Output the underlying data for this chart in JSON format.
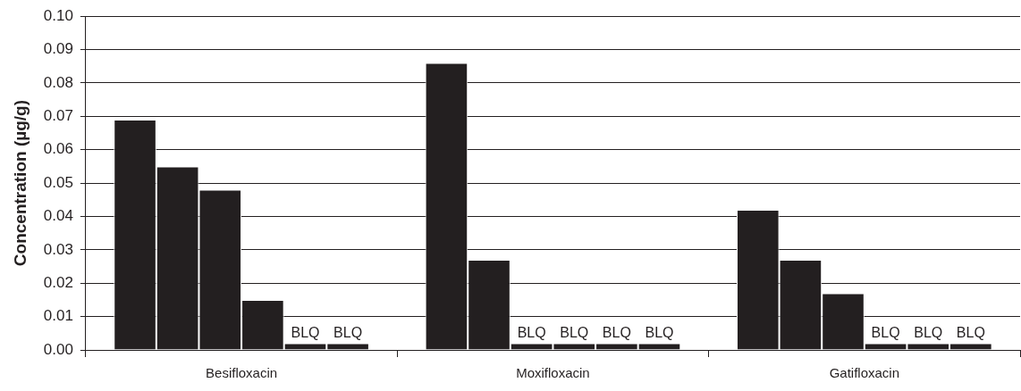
{
  "chart_data": {
    "type": "bar",
    "ylabel": "Concentration (µg/g)",
    "categories": [
      "Besifloxacin",
      "Moxifloxacin",
      "Gatifloxacin"
    ],
    "series": [
      {
        "color": "#231f20",
        "values": [
          0.069,
          0.086,
          0.042
        ],
        "value_labels": [
          null,
          null,
          null
        ]
      },
      {
        "color": "#231f20",
        "values": [
          0.055,
          0.027,
          0.027
        ],
        "value_labels": [
          null,
          null,
          null
        ]
      },
      {
        "color": "#231f20",
        "values": [
          0.048,
          0.002,
          0.017
        ],
        "value_labels": [
          null,
          "BLQ",
          null
        ]
      },
      {
        "color": "#231f20",
        "values": [
          0.015,
          0.002,
          0.002
        ],
        "value_labels": [
          null,
          "BLQ",
          "BLQ"
        ]
      },
      {
        "color": "#231f20",
        "values": [
          0.002,
          0.002,
          0.002
        ],
        "value_labels": [
          "BLQ",
          "BLQ",
          "BLQ"
        ]
      },
      {
        "color": "#231f20",
        "values": [
          0.002,
          0.002,
          0.002
        ],
        "value_labels": [
          "BLQ",
          "BLQ",
          "BLQ"
        ]
      }
    ],
    "ylim": [
      0,
      0.1
    ],
    "yticks": [
      {
        "value": 0,
        "label": "0.00"
      },
      {
        "value": 0.01,
        "label": "0.01"
      },
      {
        "value": 0.02,
        "label": "0.02"
      },
      {
        "value": 0.03,
        "label": "0.03"
      },
      {
        "value": 0.04,
        "label": "0.04"
      },
      {
        "value": 0.05,
        "label": "0.05"
      },
      {
        "value": 0.06,
        "label": "0.06"
      },
      {
        "value": 0.07,
        "label": "0.07"
      },
      {
        "value": 0.08,
        "label": "0.08"
      },
      {
        "value": 0.09,
        "label": "0.09"
      },
      {
        "value": 0.1,
        "label": "0.10"
      }
    ],
    "grid": "y",
    "legend": false
  }
}
